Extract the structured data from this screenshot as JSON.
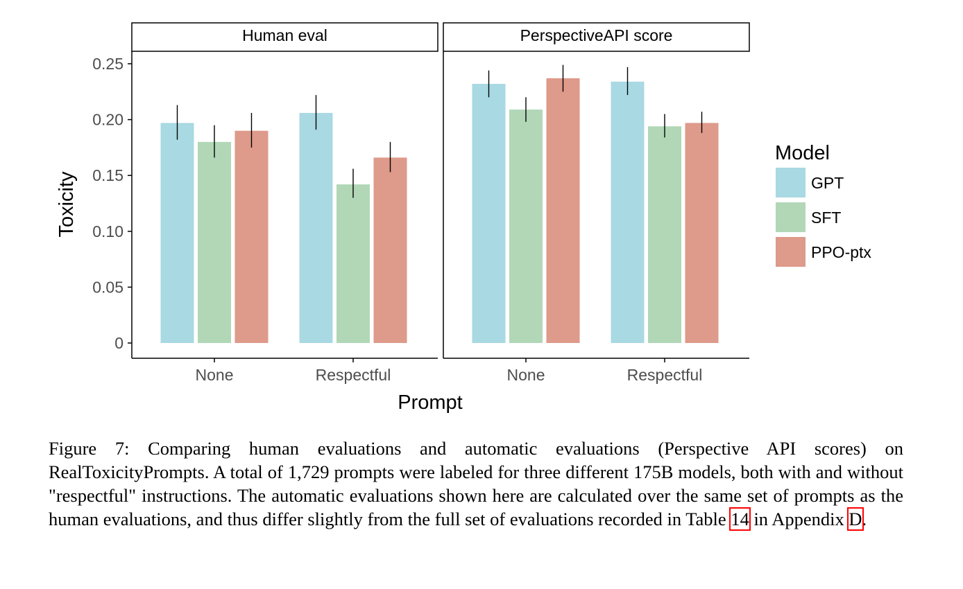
{
  "chart_data": {
    "type": "bar",
    "facets": [
      {
        "title": "Human eval",
        "categories": [
          "None",
          "Respectful"
        ],
        "series": [
          {
            "name": "GPT",
            "values": [
              0.197,
              0.206
            ],
            "error": [
              [
                0.182,
                0.213
              ],
              [
                0.191,
                0.222
              ]
            ]
          },
          {
            "name": "SFT",
            "values": [
              0.18,
              0.142
            ],
            "error": [
              [
                0.166,
                0.195
              ],
              [
                0.13,
                0.156
              ]
            ]
          },
          {
            "name": "PPO-ptx",
            "values": [
              0.19,
              0.166
            ],
            "error": [
              [
                0.175,
                0.206
              ],
              [
                0.153,
                0.18
              ]
            ]
          }
        ]
      },
      {
        "title": "PerspectiveAPI score",
        "categories": [
          "None",
          "Respectful"
        ],
        "series": [
          {
            "name": "GPT",
            "values": [
              0.232,
              0.234
            ],
            "error": [
              [
                0.22,
                0.244
              ],
              [
                0.222,
                0.247
              ]
            ]
          },
          {
            "name": "SFT",
            "values": [
              0.209,
              0.194
            ],
            "error": [
              [
                0.198,
                0.22
              ],
              [
                0.184,
                0.205
              ]
            ]
          },
          {
            "name": "PPO-ptx",
            "values": [
              0.237,
              0.197
            ],
            "error": [
              [
                0.225,
                0.249
              ],
              [
                0.188,
                0.207
              ]
            ]
          }
        ]
      }
    ],
    "xlabel": "Prompt",
    "ylabel": "Toxicity",
    "ylim": [
      -0.013,
      0.25
    ],
    "yticks": [
      0,
      0.05,
      0.1,
      0.15,
      0.2,
      0.25
    ],
    "ytick_labels": [
      "0",
      "0.05",
      "0.10",
      "0.15",
      "0.20",
      "0.25"
    ],
    "grid": false,
    "legend": {
      "title": "Model",
      "placement": "right",
      "entries": [
        "GPT",
        "SFT",
        "PPO-ptx"
      ]
    },
    "colors": {
      "GPT": "#a9d9e3",
      "SFT": "#b1d7b7",
      "PPO-ptx": "#de9a8a"
    }
  },
  "caption": {
    "before_ref1": "Figure 7: Comparing human evaluations and automatic evaluations (Perspective API scores) on RealToxicityPrompts. A total of 1,729 prompts were labeled for three different 175B models, both with and without \"respectful\" instructions. The automatic evaluations shown here are calculated over the same set of prompts as the human evaluations, and thus differ slightly from the full set of evaluations recorded in Table ",
    "ref1": "14",
    "between_refs": " in Appendix ",
    "ref2": "D",
    "after_ref2": "."
  }
}
